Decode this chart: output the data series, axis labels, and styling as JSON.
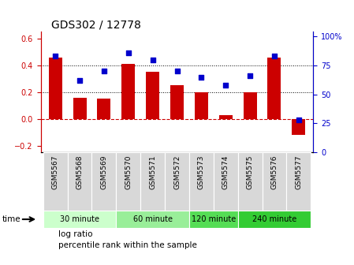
{
  "title": "GDS302 / 12778",
  "samples": [
    "GSM5567",
    "GSM5568",
    "GSM5569",
    "GSM5570",
    "GSM5571",
    "GSM5572",
    "GSM5573",
    "GSM5574",
    "GSM5575",
    "GSM5576",
    "GSM5577"
  ],
  "log_ratio": [
    0.46,
    0.16,
    0.15,
    0.41,
    0.35,
    0.25,
    0.2,
    0.03,
    0.2,
    0.46,
    -0.12
  ],
  "percentile": [
    83,
    62,
    70,
    86,
    80,
    70,
    65,
    58,
    66,
    83,
    28
  ],
  "bar_color": "#cc0000",
  "dot_color": "#0000cc",
  "ylim_left": [
    -0.25,
    0.65
  ],
  "ylim_right": [
    0,
    104
  ],
  "yticks_left": [
    -0.2,
    0.0,
    0.2,
    0.4,
    0.6
  ],
  "yticks_right": [
    0,
    25,
    50,
    75,
    100
  ],
  "yticklabels_right": [
    "0",
    "25",
    "50",
    "75",
    "100%"
  ],
  "dotted_lines": [
    0.2,
    0.4
  ],
  "zero_line_color": "#cc0000",
  "groups": [
    {
      "label": "30 minute",
      "indices": [
        0,
        1,
        2
      ],
      "color": "#ccffcc"
    },
    {
      "label": "60 minute",
      "indices": [
        3,
        4,
        5
      ],
      "color": "#99ee99"
    },
    {
      "label": "120 minute",
      "indices": [
        6,
        7
      ],
      "color": "#55dd55"
    },
    {
      "label": "240 minute",
      "indices": [
        8,
        9,
        10
      ],
      "color": "#33cc33"
    }
  ],
  "time_label": "time",
  "legend_bar_label": "log ratio",
  "legend_dot_label": "percentile rank within the sample",
  "title_fontsize": 10,
  "tick_fontsize": 7,
  "xtick_fontsize": 6.5,
  "legend_fontsize": 7.5
}
